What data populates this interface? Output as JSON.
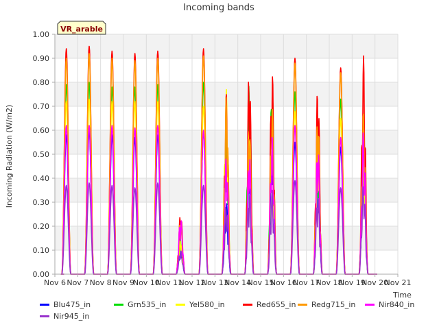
{
  "chart_data": {
    "type": "line",
    "title": "Incoming bands",
    "site_label": "VR_arable",
    "xlabel": "Time",
    "ylabel": "Incoming Radiation (W/m2)",
    "ylim": [
      0.0,
      1.0
    ],
    "xlim_days": [
      6,
      21
    ],
    "x_ticks": [
      "Nov 6",
      "Nov 7",
      "Nov 8",
      "Nov 9",
      "Nov 10",
      "Nov 11",
      "Nov 12",
      "Nov 13",
      "Nov 14",
      "Nov 15",
      "Nov 16",
      "Nov 17",
      "Nov 18",
      "Nov 19",
      "Nov 20",
      "Nov 21"
    ],
    "y_ticks": [
      "0.00",
      "0.10",
      "0.20",
      "0.30",
      "0.40",
      "0.50",
      "0.60",
      "0.70",
      "0.80",
      "0.90",
      "1.00"
    ],
    "grid": true,
    "legend_position": "bottom",
    "x_unit": "day of November",
    "series": [
      {
        "name": "Blu475_in",
        "color": "#0000ff",
        "peaks": [
          0.58,
          0.6,
          0.58,
          0.57,
          0.58,
          0.13,
          0.6,
          0.3,
          0.55,
          0.58,
          0.55,
          0.45,
          0.53,
          0.6
        ]
      },
      {
        "name": "Grn535_in",
        "color": "#00dd00",
        "peaks": [
          0.79,
          0.8,
          0.78,
          0.78,
          0.79,
          0.16,
          0.8,
          0.6,
          0.8,
          0.8,
          0.76,
          0.6,
          0.73,
          0.65
        ]
      },
      {
        "name": "Yel580_in",
        "color": "#ffff00",
        "peaks": [
          0.72,
          0.73,
          0.72,
          0.72,
          0.72,
          0.15,
          0.7,
          0.77,
          0.63,
          0.68,
          0.68,
          0.55,
          0.65,
          0.6
        ]
      },
      {
        "name": "Red655_in",
        "color": "#ff0000",
        "peaks": [
          0.94,
          0.95,
          0.93,
          0.92,
          0.93,
          0.26,
          0.94,
          0.76,
          0.87,
          0.86,
          0.9,
          0.8,
          0.86,
          0.91
        ]
      },
      {
        "name": "Redg715_in",
        "color": "#ff9900",
        "peaks": [
          0.9,
          0.92,
          0.9,
          0.89,
          0.9,
          0.24,
          0.91,
          0.75,
          0.64,
          0.7,
          0.88,
          0.68,
          0.84,
          0.68
        ]
      },
      {
        "name": "Nir840_in",
        "color": "#ff00ff",
        "peaks": [
          0.62,
          0.62,
          0.62,
          0.61,
          0.62,
          0.24,
          0.6,
          0.5,
          0.52,
          0.58,
          0.62,
          0.55,
          0.57,
          0.6
        ]
      },
      {
        "name": "Nir945_in",
        "color": "#9933cc",
        "peaks": [
          0.37,
          0.38,
          0.37,
          0.36,
          0.38,
          0.1,
          0.37,
          0.3,
          0.35,
          0.35,
          0.39,
          0.34,
          0.36,
          0.38
        ]
      }
    ],
    "days": [
      7,
      8,
      9,
      10,
      11,
      12,
      13,
      14,
      15,
      16,
      17,
      18,
      19,
      20
    ]
  }
}
